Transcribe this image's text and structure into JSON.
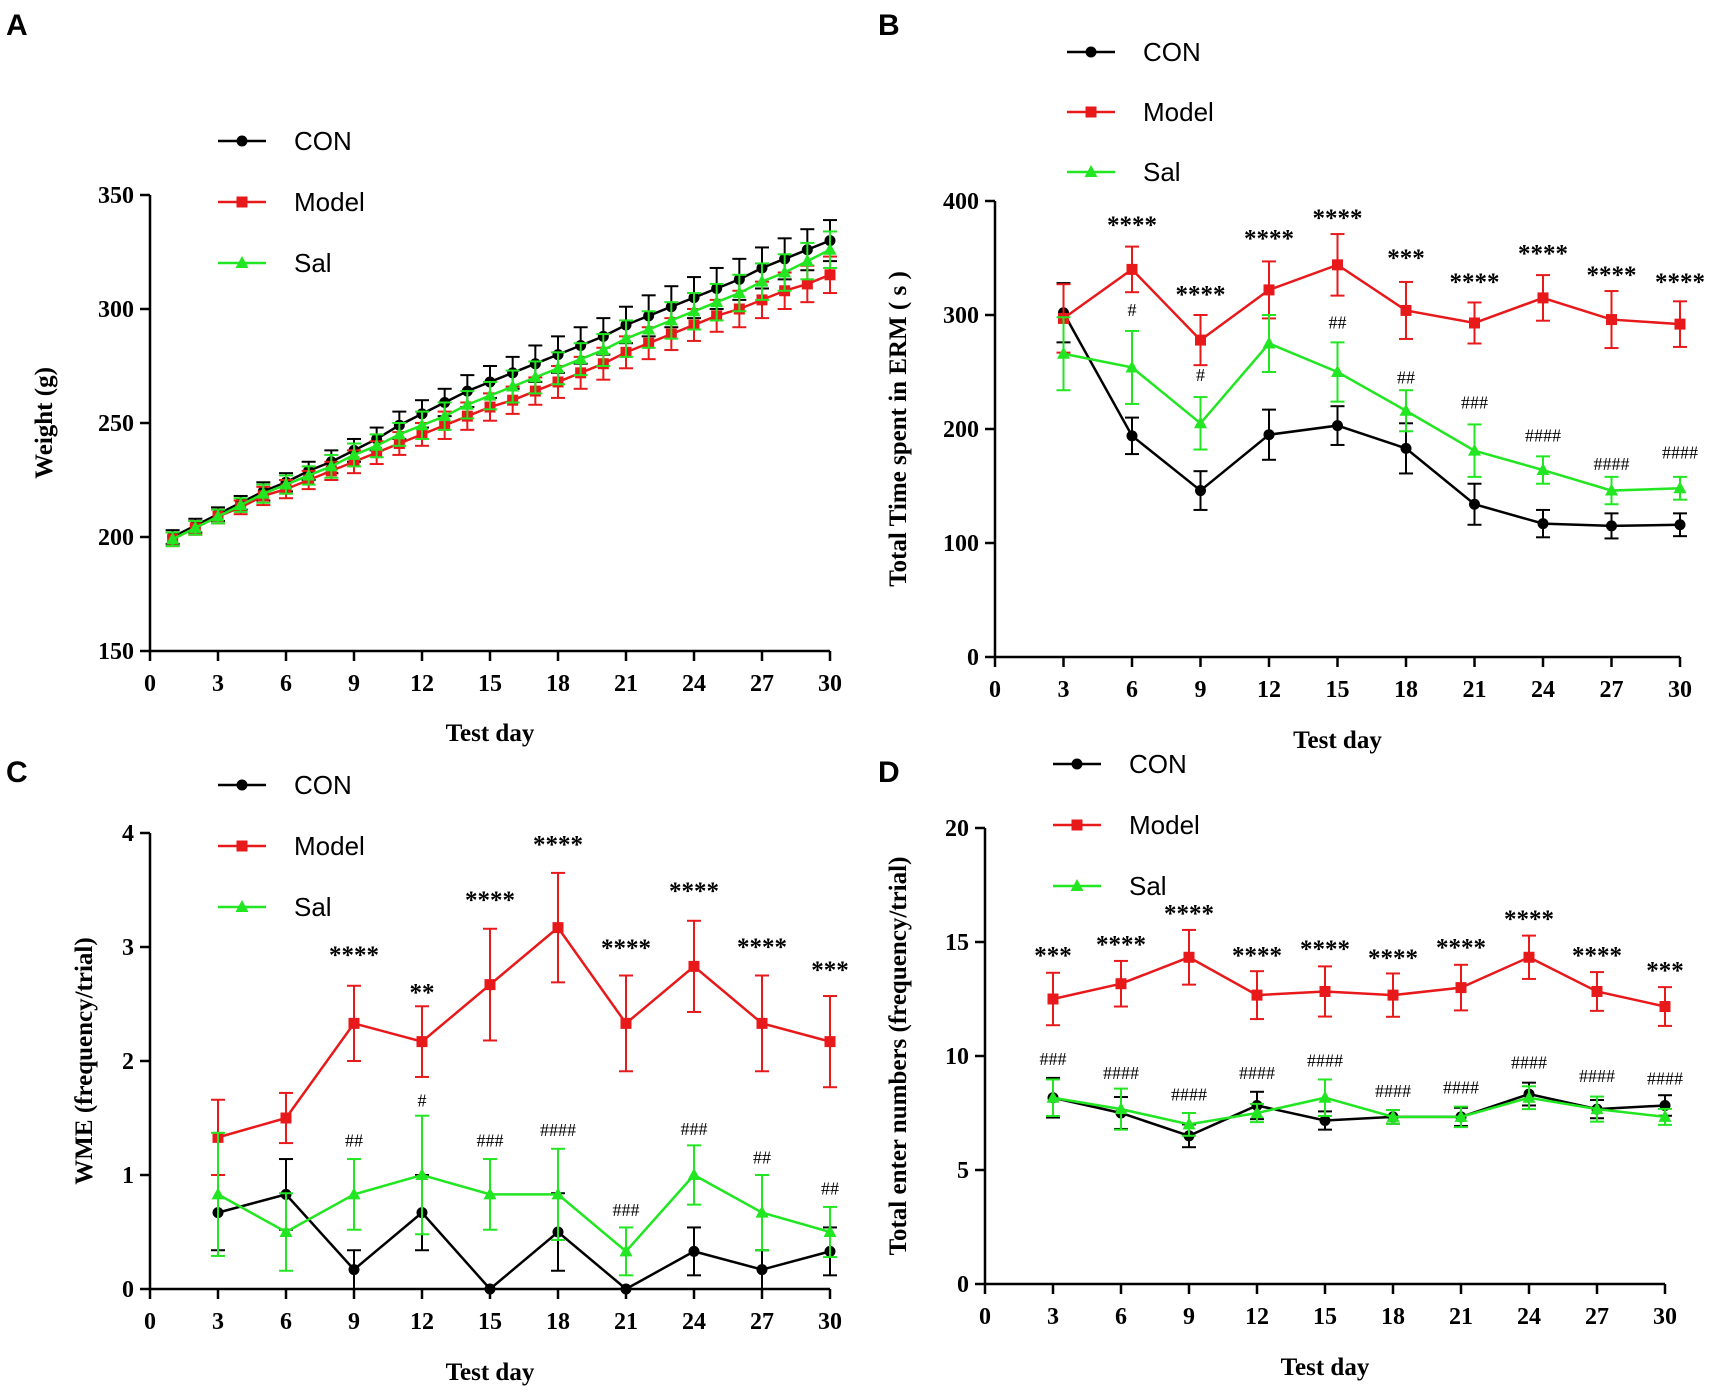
{
  "figure": {
    "colors": {
      "CON": "#000000",
      "Model": "#e8191b",
      "Sal": "#21e621"
    },
    "markers": {
      "CON": "circle",
      "Model": "square",
      "Sal": "triangle"
    }
  },
  "chart_data": [
    {
      "panel": "A",
      "type": "line",
      "title": "",
      "xlabel": "Test day",
      "ylabel": "Weight (g)",
      "xlim": [
        0,
        30
      ],
      "ylim": [
        150,
        350
      ],
      "xticks": [
        0,
        3,
        6,
        9,
        12,
        15,
        18,
        21,
        24,
        27,
        30
      ],
      "yticks": [
        150,
        200,
        250,
        300,
        350
      ],
      "legend": [
        "CON",
        "Model",
        "Sal"
      ],
      "x": [
        1,
        2,
        3,
        4,
        5,
        6,
        7,
        8,
        9,
        10,
        11,
        12,
        13,
        14,
        15,
        16,
        17,
        18,
        19,
        20,
        21,
        22,
        23,
        24,
        25,
        26,
        27,
        28,
        29,
        30
      ],
      "series": [
        {
          "name": "CON",
          "values": [
            200,
            205,
            210,
            215,
            220,
            224,
            229,
            233,
            238,
            243,
            249,
            254,
            259,
            264,
            268,
            272,
            276,
            280,
            284,
            288,
            293,
            297,
            301,
            305,
            309,
            313,
            318,
            322,
            326,
            330
          ],
          "errors": [
            3,
            3,
            3,
            3,
            4,
            4,
            4,
            5,
            5,
            5,
            6,
            6,
            6,
            7,
            7,
            7,
            8,
            8,
            8,
            8,
            8,
            9,
            9,
            9,
            9,
            9,
            9,
            9,
            9,
            9
          ]
        },
        {
          "name": "Model",
          "values": [
            199,
            204,
            209,
            213,
            218,
            221,
            225,
            229,
            233,
            237,
            241,
            245,
            249,
            253,
            257,
            260,
            264,
            268,
            272,
            276,
            281,
            285,
            289,
            293,
            297,
            300,
            304,
            308,
            311,
            315
          ],
          "errors": [
            3,
            3,
            3,
            3,
            4,
            4,
            4,
            4,
            5,
            5,
            5,
            5,
            6,
            6,
            6,
            6,
            6,
            7,
            7,
            7,
            7,
            7,
            7,
            7,
            7,
            8,
            8,
            8,
            8,
            8
          ]
        },
        {
          "name": "Sal",
          "values": [
            199,
            204,
            209,
            214,
            219,
            223,
            227,
            231,
            236,
            240,
            245,
            249,
            253,
            258,
            262,
            266,
            270,
            274,
            278,
            282,
            287,
            291,
            295,
            299,
            303,
            307,
            312,
            316,
            321,
            326
          ],
          "errors": [
            3,
            3,
            3,
            3,
            4,
            4,
            4,
            5,
            5,
            5,
            5,
            6,
            6,
            6,
            6,
            7,
            7,
            7,
            7,
            7,
            8,
            8,
            8,
            8,
            8,
            8,
            8,
            8,
            8,
            8
          ]
        }
      ],
      "annotations": []
    },
    {
      "panel": "B",
      "type": "line",
      "title": "",
      "xlabel": "Test day",
      "ylabel": "Total Time spent in ERM ( s )",
      "xlim": [
        0,
        30
      ],
      "ylim": [
        0,
        400
      ],
      "xticks": [
        0,
        3,
        6,
        9,
        12,
        15,
        18,
        21,
        24,
        27,
        30
      ],
      "yticks": [
        0,
        100,
        200,
        300,
        400
      ],
      "legend": [
        "CON",
        "Model",
        "Sal"
      ],
      "x": [
        3,
        6,
        9,
        12,
        15,
        18,
        21,
        24,
        27,
        30
      ],
      "series": [
        {
          "name": "CON",
          "values": [
            302,
            194,
            146,
            195,
            203,
            183,
            134,
            117,
            115,
            116
          ],
          "errors": [
            26,
            16,
            17,
            22,
            17,
            22,
            18,
            12,
            11,
            10
          ]
        },
        {
          "name": "Model",
          "values": [
            297,
            340,
            278,
            322,
            344,
            304,
            293,
            315,
            296,
            292
          ],
          "errors": [
            30,
            20,
            22,
            25,
            27,
            25,
            18,
            20,
            25,
            20
          ]
        },
        {
          "name": "Sal",
          "values": [
            266,
            254,
            205,
            275,
            250,
            216,
            181,
            164,
            146,
            148
          ],
          "errors": [
            32,
            32,
            23,
            25,
            26,
            18,
            23,
            12,
            12,
            10
          ]
        }
      ],
      "annotations": [
        {
          "x": 6,
          "y": 372,
          "text": "****",
          "kind": "star"
        },
        {
          "x": 9,
          "y": 311,
          "text": "****",
          "kind": "star"
        },
        {
          "x": 12,
          "y": 360,
          "text": "****",
          "kind": "star"
        },
        {
          "x": 15,
          "y": 378,
          "text": "****",
          "kind": "star"
        },
        {
          "x": 18,
          "y": 343,
          "text": "***",
          "kind": "star"
        },
        {
          "x": 21,
          "y": 322,
          "text": "****",
          "kind": "star"
        },
        {
          "x": 24,
          "y": 347,
          "text": "****",
          "kind": "star"
        },
        {
          "x": 27,
          "y": 328,
          "text": "****",
          "kind": "star"
        },
        {
          "x": 30,
          "y": 322,
          "text": "****",
          "kind": "star"
        },
        {
          "x": 6,
          "y": 299,
          "text": "#",
          "kind": "hash"
        },
        {
          "x": 9,
          "y": 242,
          "text": "#",
          "kind": "hash"
        },
        {
          "x": 15,
          "y": 288,
          "text": "##",
          "kind": "hash"
        },
        {
          "x": 18,
          "y": 240,
          "text": "##",
          "kind": "hash"
        },
        {
          "x": 21,
          "y": 218,
          "text": "###",
          "kind": "hash"
        },
        {
          "x": 24,
          "y": 189,
          "text": "####",
          "kind": "hash"
        },
        {
          "x": 27,
          "y": 164,
          "text": "####",
          "kind": "hash"
        },
        {
          "x": 30,
          "y": 174,
          "text": "####",
          "kind": "hash"
        }
      ]
    },
    {
      "panel": "C",
      "type": "line",
      "title": "",
      "xlabel": "Test day",
      "ylabel": "WME (frequency/trial)",
      "xlim": [
        0,
        30
      ],
      "ylim": [
        0,
        4
      ],
      "xticks": [
        0,
        3,
        6,
        9,
        12,
        15,
        18,
        21,
        24,
        27,
        30
      ],
      "yticks": [
        0,
        1,
        2,
        3,
        4
      ],
      "legend": [
        "CON",
        "Model",
        "Sal"
      ],
      "x": [
        3,
        6,
        9,
        12,
        15,
        18,
        21,
        24,
        27,
        30
      ],
      "series": [
        {
          "name": "CON",
          "values": [
            0.67,
            0.83,
            0.17,
            0.67,
            0.0,
            0.5,
            0.0,
            0.33,
            0.17,
            0.33
          ],
          "errors": [
            0.33,
            0.31,
            0.17,
            0.33,
            0.0,
            0.34,
            0.0,
            0.21,
            0.17,
            0.21
          ]
        },
        {
          "name": "Model",
          "values": [
            1.33,
            1.5,
            2.33,
            2.17,
            2.67,
            3.17,
            2.33,
            2.83,
            2.33,
            2.17
          ],
          "errors": [
            0.33,
            0.22,
            0.33,
            0.31,
            0.49,
            0.48,
            0.42,
            0.4,
            0.42,
            0.4
          ]
        },
        {
          "name": "Sal",
          "values": [
            0.83,
            0.5,
            0.83,
            1.0,
            0.83,
            0.83,
            0.33,
            1.0,
            0.67,
            0.5
          ],
          "errors": [
            0.54,
            0.34,
            0.31,
            0.52,
            0.31,
            0.4,
            0.21,
            0.26,
            0.33,
            0.22
          ]
        }
      ],
      "annotations": [
        {
          "x": 9,
          "y": 2.86,
          "text": "****",
          "kind": "star"
        },
        {
          "x": 12,
          "y": 2.53,
          "text": "**",
          "kind": "star"
        },
        {
          "x": 15,
          "y": 3.34,
          "text": "****",
          "kind": "star"
        },
        {
          "x": 18,
          "y": 3.83,
          "text": "****",
          "kind": "star"
        },
        {
          "x": 21,
          "y": 2.92,
          "text": "****",
          "kind": "star"
        },
        {
          "x": 24,
          "y": 3.42,
          "text": "****",
          "kind": "star"
        },
        {
          "x": 27,
          "y": 2.93,
          "text": "****",
          "kind": "star"
        },
        {
          "x": 30,
          "y": 2.73,
          "text": "***",
          "kind": "star"
        },
        {
          "x": 9,
          "y": 1.25,
          "text": "##",
          "kind": "hash"
        },
        {
          "x": 12,
          "y": 1.6,
          "text": "#",
          "kind": "hash"
        },
        {
          "x": 15,
          "y": 1.25,
          "text": "###",
          "kind": "hash"
        },
        {
          "x": 18,
          "y": 1.34,
          "text": "####",
          "kind": "hash"
        },
        {
          "x": 21,
          "y": 0.64,
          "text": "###",
          "kind": "hash"
        },
        {
          "x": 24,
          "y": 1.35,
          "text": "###",
          "kind": "hash"
        },
        {
          "x": 27,
          "y": 1.1,
          "text": "##",
          "kind": "hash"
        },
        {
          "x": 30,
          "y": 0.83,
          "text": "##",
          "kind": "hash"
        }
      ]
    },
    {
      "panel": "D",
      "type": "line",
      "title": "",
      "xlabel": "Test day",
      "ylabel": "Total enter numbers (frequency/trial)",
      "xlim": [
        0,
        30
      ],
      "ylim": [
        0,
        20
      ],
      "xticks": [
        0,
        3,
        6,
        9,
        12,
        15,
        18,
        21,
        24,
        27,
        30
      ],
      "yticks": [
        0,
        5,
        10,
        15,
        20
      ],
      "legend": [
        "CON",
        "Model",
        "Sal"
      ],
      "x": [
        3,
        6,
        9,
        12,
        15,
        18,
        21,
        24,
        27,
        30
      ],
      "series": [
        {
          "name": "CON",
          "values": [
            8.17,
            7.5,
            6.5,
            7.83,
            7.17,
            7.33,
            7.33,
            8.33,
            7.67,
            7.83
          ],
          "errors": [
            0.87,
            0.7,
            0.5,
            0.6,
            0.4,
            0.3,
            0.4,
            0.5,
            0.4,
            0.45
          ]
        },
        {
          "name": "Model",
          "values": [
            12.5,
            13.17,
            14.33,
            12.67,
            12.83,
            12.67,
            13.0,
            14.33,
            12.83,
            12.17
          ],
          "errors": [
            1.15,
            1.0,
            1.2,
            1.05,
            1.1,
            0.95,
            1.0,
            0.95,
            0.85,
            0.85
          ]
        },
        {
          "name": "Sal",
          "values": [
            8.17,
            7.67,
            7.0,
            7.5,
            8.17,
            7.33,
            7.33,
            8.17,
            7.67,
            7.33
          ],
          "errors": [
            0.8,
            0.9,
            0.5,
            0.4,
            0.8,
            0.3,
            0.45,
            0.5,
            0.55,
            0.35
          ]
        }
      ],
      "annotations": [
        {
          "x": 3,
          "y": 14.05,
          "text": "***",
          "kind": "star"
        },
        {
          "x": 6,
          "y": 14.55,
          "text": "****",
          "kind": "star"
        },
        {
          "x": 9,
          "y": 15.9,
          "text": "****",
          "kind": "star"
        },
        {
          "x": 12,
          "y": 14.05,
          "text": "****",
          "kind": "star"
        },
        {
          "x": 15,
          "y": 14.35,
          "text": "****",
          "kind": "star"
        },
        {
          "x": 18,
          "y": 13.95,
          "text": "****",
          "kind": "star"
        },
        {
          "x": 21,
          "y": 14.4,
          "text": "****",
          "kind": "star"
        },
        {
          "x": 24,
          "y": 15.65,
          "text": "****",
          "kind": "star"
        },
        {
          "x": 27,
          "y": 14.05,
          "text": "****",
          "kind": "star"
        },
        {
          "x": 30,
          "y": 13.4,
          "text": "***",
          "kind": "star"
        },
        {
          "x": 3,
          "y": 9.6,
          "text": "###",
          "kind": "hash"
        },
        {
          "x": 6,
          "y": 9.0,
          "text": "####",
          "kind": "hash"
        },
        {
          "x": 9,
          "y": 8.05,
          "text": "####",
          "kind": "hash"
        },
        {
          "x": 12,
          "y": 9.0,
          "text": "####",
          "kind": "hash"
        },
        {
          "x": 15,
          "y": 9.55,
          "text": "####",
          "kind": "hash"
        },
        {
          "x": 18,
          "y": 8.2,
          "text": "####",
          "kind": "hash"
        },
        {
          "x": 21,
          "y": 8.35,
          "text": "####",
          "kind": "hash"
        },
        {
          "x": 24,
          "y": 9.45,
          "text": "####",
          "kind": "hash"
        },
        {
          "x": 27,
          "y": 8.85,
          "text": "####",
          "kind": "hash"
        },
        {
          "x": 30,
          "y": 8.75,
          "text": "####",
          "kind": "hash"
        }
      ]
    }
  ]
}
